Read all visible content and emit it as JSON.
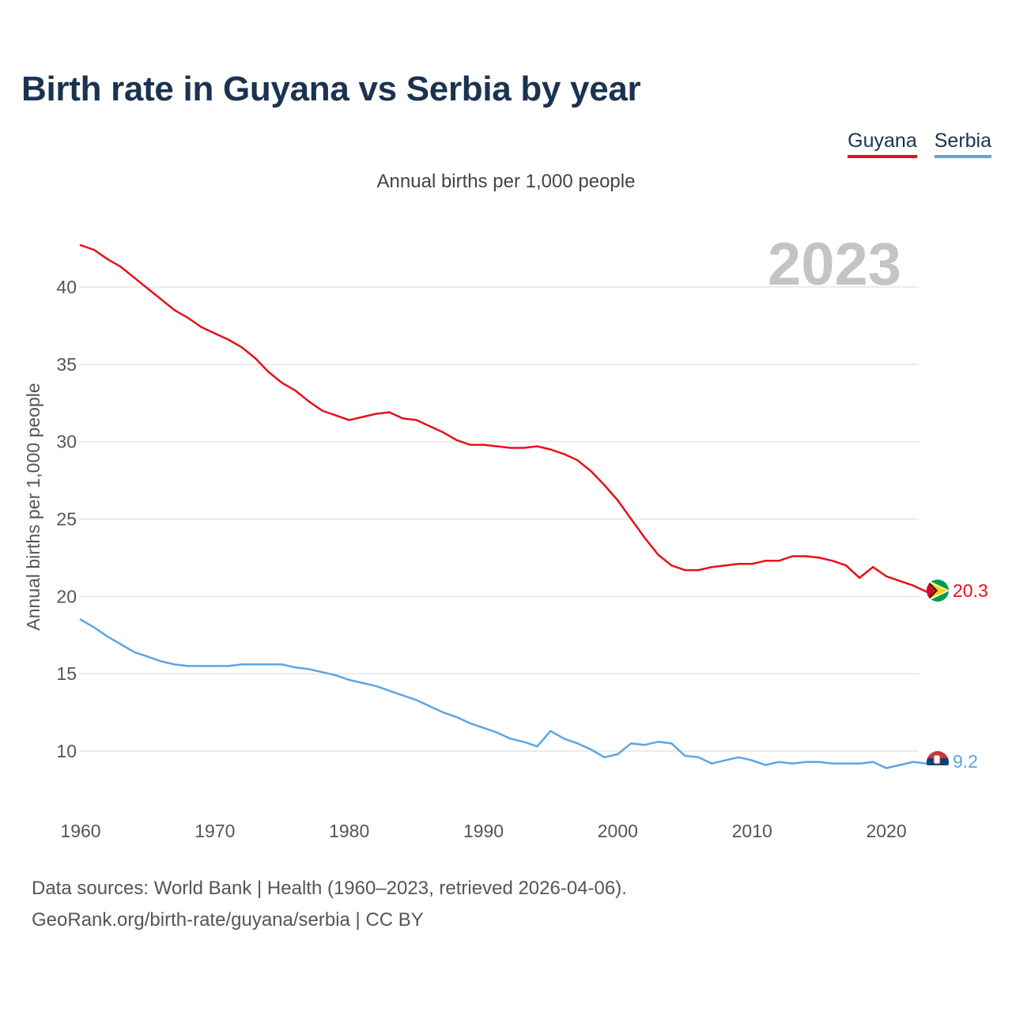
{
  "colors": {
    "guyana": "#e8101a",
    "serbia": "#5aa6e6",
    "grid": "#e6e6e6",
    "year": "#c4c4c4",
    "tick": "#555555"
  },
  "chart_data": {
    "type": "line",
    "title": "Birth rate in Guyana vs Serbia by year",
    "subtitle": "Annual births per 1,000 people",
    "xlabel": "",
    "ylabel": "Annual births per 1,000 people",
    "year_label": "2023",
    "xlim": [
      1960,
      2023
    ],
    "ylim": [
      6,
      43
    ],
    "x_ticks": [
      1960,
      1970,
      1980,
      1990,
      2000,
      2010,
      2020
    ],
    "y_ticks": [
      10,
      15,
      20,
      25,
      30,
      35,
      40
    ],
    "grid": true,
    "legend_position": "top-right",
    "x": [
      1960,
      1961,
      1962,
      1963,
      1964,
      1965,
      1966,
      1967,
      1968,
      1969,
      1970,
      1971,
      1972,
      1973,
      1974,
      1975,
      1976,
      1977,
      1978,
      1979,
      1980,
      1981,
      1982,
      1983,
      1984,
      1985,
      1986,
      1987,
      1988,
      1989,
      1990,
      1991,
      1992,
      1993,
      1994,
      1995,
      1996,
      1997,
      1998,
      1999,
      2000,
      2001,
      2002,
      2003,
      2004,
      2005,
      2006,
      2007,
      2008,
      2009,
      2010,
      2011,
      2012,
      2013,
      2014,
      2015,
      2016,
      2017,
      2018,
      2019,
      2020,
      2021,
      2022,
      2023
    ],
    "series": [
      {
        "name": "Guyana",
        "end_label": "20.3",
        "values": [
          42.7,
          42.4,
          41.8,
          41.3,
          40.6,
          39.9,
          39.2,
          38.5,
          38.0,
          37.4,
          37.0,
          36.6,
          36.1,
          35.4,
          34.5,
          33.8,
          33.3,
          32.6,
          32.0,
          31.7,
          31.4,
          31.6,
          31.8,
          31.9,
          31.5,
          31.4,
          31.0,
          30.6,
          30.1,
          29.8,
          29.8,
          29.7,
          29.6,
          29.6,
          29.7,
          29.5,
          29.2,
          28.8,
          28.1,
          27.2,
          26.2,
          25.0,
          23.8,
          22.7,
          22.0,
          21.7,
          21.7,
          21.9,
          22.0,
          22.1,
          22.1,
          22.3,
          22.3,
          22.6,
          22.6,
          22.5,
          22.3,
          22.0,
          21.2,
          21.9,
          21.3,
          21.0,
          20.7,
          20.3
        ]
      },
      {
        "name": "Serbia",
        "end_label": "9.2",
        "values": [
          18.5,
          18.0,
          17.4,
          16.9,
          16.4,
          16.1,
          15.8,
          15.6,
          15.5,
          15.5,
          15.5,
          15.5,
          15.6,
          15.6,
          15.6,
          15.6,
          15.4,
          15.3,
          15.1,
          14.9,
          14.6,
          14.4,
          14.2,
          13.9,
          13.6,
          13.3,
          12.9,
          12.5,
          12.2,
          11.8,
          11.5,
          11.2,
          10.8,
          10.6,
          10.3,
          11.3,
          10.8,
          10.5,
          10.1,
          9.6,
          9.8,
          10.5,
          10.4,
          10.6,
          10.5,
          9.7,
          9.6,
          9.2,
          9.4,
          9.6,
          9.4,
          9.1,
          9.3,
          9.2,
          9.3,
          9.3,
          9.2,
          9.2,
          9.2,
          9.3,
          8.9,
          9.1,
          9.3,
          9.2
        ]
      }
    ]
  },
  "footer": {
    "line1": "Data sources: World Bank | Health (1960–2023, retrieved 2026-04-06).",
    "line2": "GeoRank.org/birth-rate/guyana/serbia | CC BY"
  }
}
